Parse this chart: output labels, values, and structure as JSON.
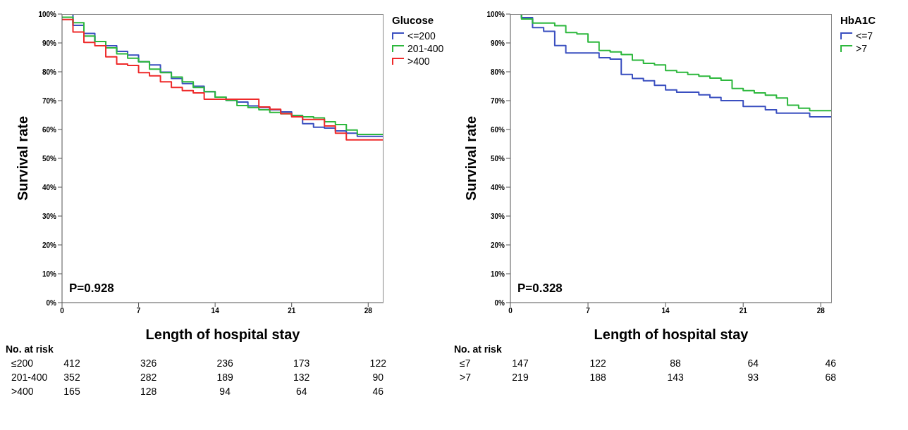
{
  "chart_data": [
    {
      "type": "step",
      "xlabel": "Length of hospital stay",
      "ylabel": "Survival rate",
      "legend_title": "Glucose",
      "legend": "right",
      "x": [
        0,
        1,
        2,
        3,
        4,
        5,
        6,
        7,
        8,
        9,
        10,
        11,
        12,
        13,
        14,
        15,
        16,
        17,
        18,
        19,
        20,
        21,
        22,
        23,
        24,
        25,
        26,
        27,
        29.4
      ],
      "xlim": [
        0,
        29.4
      ],
      "xticks": [
        0,
        7,
        14,
        21,
        28
      ],
      "ylim": [
        0,
        100
      ],
      "yticks": [
        {
          "value": 0,
          "label": "0%"
        },
        {
          "value": 10,
          "label": "10%"
        },
        {
          "value": 20,
          "label": "20%"
        },
        {
          "value": 30,
          "label": "30%"
        },
        {
          "value": 40,
          "label": "40%"
        },
        {
          "value": 50,
          "label": "50%"
        },
        {
          "value": 60,
          "label": "60%"
        },
        {
          "value": 70,
          "label": "70%"
        },
        {
          "value": 80,
          "label": "80%"
        },
        {
          "value": 90,
          "label": "90%"
        },
        {
          "value": 100,
          "label": "100%"
        }
      ],
      "series": [
        {
          "name": "<=200",
          "color": "#3a4fc0",
          "values": [
            100,
            96.1,
            93.3,
            90.5,
            89.0,
            87.1,
            85.8,
            83.5,
            82.4,
            79.9,
            77.7,
            75.9,
            75.0,
            73.1,
            71.2,
            70.1,
            69.5,
            68.2,
            67.6,
            66.8,
            66.1,
            64.8,
            62.0,
            60.8,
            60.5,
            59.5,
            58.7,
            57.6,
            57.6
          ]
        },
        {
          "name": "201-400",
          "color": "#2db83d",
          "values": [
            98.9,
            97.0,
            92.4,
            90.5,
            88.3,
            86.2,
            84.7,
            83.5,
            80.9,
            79.7,
            78.2,
            76.5,
            74.6,
            73.1,
            71.2,
            70.1,
            68.3,
            67.6,
            66.8,
            65.9,
            65.5,
            64.8,
            64.4,
            64.0,
            62.7,
            61.7,
            59.8,
            58.3,
            58.3
          ]
        },
        {
          "name": ">400",
          "color": "#ee2a2a",
          "values": [
            98.1,
            93.8,
            90.2,
            89.0,
            85.2,
            82.7,
            82.2,
            79.7,
            78.6,
            76.5,
            74.6,
            73.5,
            72.7,
            70.5,
            70.5,
            70.5,
            70.5,
            70.5,
            67.8,
            67.0,
            65.5,
            64.4,
            63.5,
            63.5,
            61.2,
            58.7,
            56.4,
            56.4,
            56.4
          ]
        }
      ],
      "annotations": [
        "P=0.928",
        "No. at risk",
        "≤200 412 326 236 173 122",
        "201-400 352 282 189 132 90",
        ">400 165 128 94 64 46"
      ]
    },
    {
      "type": "step",
      "xlabel": "Length of hospital stay",
      "ylabel": "Survival rate",
      "legend_title": "HbA1C",
      "legend": "right",
      "x": [
        0,
        1,
        2,
        3,
        4,
        5,
        6,
        7,
        8,
        9,
        10,
        11,
        12,
        13,
        14,
        15,
        16,
        17,
        18,
        19,
        20,
        21,
        22,
        23,
        24,
        25,
        26,
        27,
        29
      ],
      "xlim": [
        0,
        29
      ],
      "xticks": [
        0,
        7,
        14,
        21,
        28
      ],
      "ylim": [
        0,
        100
      ],
      "yticks": [
        {
          "value": 0,
          "label": "0%"
        },
        {
          "value": 10,
          "label": "10%"
        },
        {
          "value": 20,
          "label": "20%"
        },
        {
          "value": 30,
          "label": "30%"
        },
        {
          "value": 40,
          "label": "40%"
        },
        {
          "value": 50,
          "label": "50%"
        },
        {
          "value": 60,
          "label": "60%"
        },
        {
          "value": 70,
          "label": "70%"
        },
        {
          "value": 80,
          "label": "80%"
        },
        {
          "value": 90,
          "label": "90%"
        },
        {
          "value": 100,
          "label": "100%"
        }
      ],
      "series": [
        {
          "name": "<=7",
          "color": "#3a4fc0",
          "values": [
            100,
            98.8,
            95.3,
            94.0,
            89.1,
            86.5,
            86.5,
            86.5,
            84.9,
            84.4,
            79.1,
            77.7,
            76.9,
            75.3,
            73.7,
            72.9,
            72.9,
            72.0,
            71.1,
            70.0,
            70.0,
            68.0,
            68.0,
            66.8,
            65.7,
            65.7,
            65.7,
            64.4,
            64.4
          ]
        },
        {
          "name": ">7",
          "color": "#2db83d",
          "values": [
            100,
            98.3,
            96.9,
            96.9,
            96.0,
            93.6,
            93.1,
            90.3,
            87.4,
            86.9,
            86.0,
            84.0,
            82.9,
            82.4,
            80.4,
            79.8,
            79.1,
            78.5,
            77.8,
            77.1,
            74.2,
            73.5,
            72.7,
            71.9,
            70.9,
            68.4,
            67.4,
            66.5,
            66.5
          ]
        }
      ],
      "annotations": [
        "P=0.328",
        "No. at risk",
        "≤7 147 122 88 64 46",
        ">7 219 188 143 93 68"
      ]
    }
  ]
}
